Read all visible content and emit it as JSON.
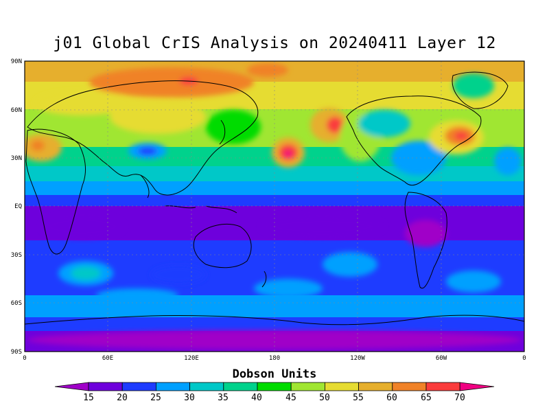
{
  "title": "j01 Global CrIS Analysis on 20240411 Layer 12",
  "map": {
    "lat_labels": [
      "90N",
      "60N",
      "30N",
      "EQ",
      "30S",
      "60S",
      "90S"
    ],
    "lon_labels": [
      "0",
      "60E",
      "120E",
      "180",
      "120W",
      "60W",
      "0"
    ]
  },
  "colorbar": {
    "title": "Dobson Units",
    "labels": [
      "15",
      "20",
      "25",
      "30",
      "35",
      "40",
      "45",
      "50",
      "55",
      "60",
      "65",
      "70"
    ],
    "colors": [
      "#a000c8",
      "#6e00dc",
      "#1e3cff",
      "#00a0ff",
      "#00c8c8",
      "#00d28c",
      "#00dc00",
      "#a0e632",
      "#e6dc32",
      "#e6af2d",
      "#f08228",
      "#fa3c3c",
      "#f00082"
    ]
  }
}
